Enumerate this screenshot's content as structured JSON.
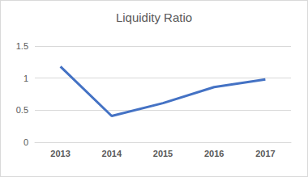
{
  "chart_data": {
    "type": "line",
    "title": "Liquidity Ratio",
    "categories": [
      "2013",
      "2014",
      "2015",
      "2016",
      "2017"
    ],
    "values": [
      1.18,
      0.41,
      0.61,
      0.86,
      0.98
    ],
    "color": "#4472c4",
    "ylim": [
      0,
      1.5
    ],
    "yticks": [
      0,
      0.5,
      1,
      1.5
    ],
    "grid": true
  }
}
